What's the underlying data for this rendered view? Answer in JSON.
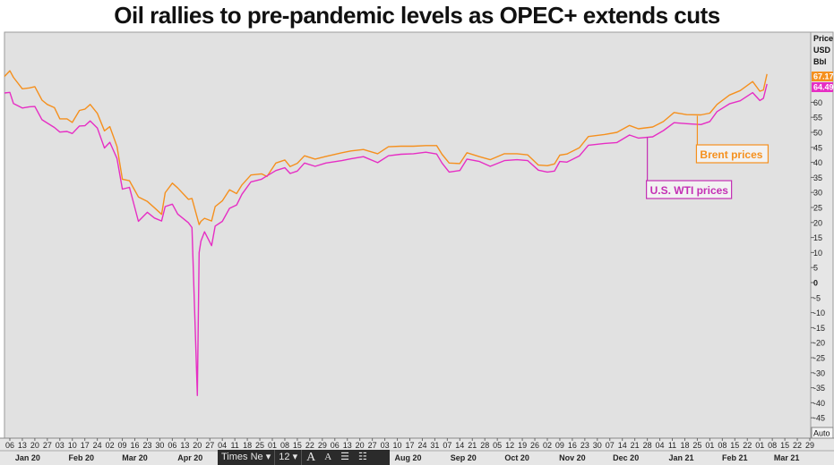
{
  "title": "Oil rallies to pre-pandemic levels as OPEC+ extends cuts",
  "chart_data": {
    "type": "line",
    "title": "Oil rallies to pre-pandemic levels as OPEC+ extends cuts",
    "y_axis_label": [
      "Price",
      "USD",
      "Bbl"
    ],
    "ylim": [
      -48,
      85
    ],
    "y_ticks": [
      60,
      55,
      50,
      45,
      40,
      35,
      30,
      25,
      20,
      15,
      10,
      5,
      0,
      -5,
      -10,
      -15,
      -20,
      -25,
      -30,
      -35,
      -40,
      -45
    ],
    "x_range": [
      "2020-01-03",
      "2021-03-31"
    ],
    "x_tick_labels": [
      {
        "d": "2020-01-06",
        "t": "06"
      },
      {
        "d": "2020-01-13",
        "t": "13"
      },
      {
        "d": "2020-01-20",
        "t": "20"
      },
      {
        "d": "2020-01-27",
        "t": "27"
      },
      {
        "d": "2020-02-03",
        "t": "03"
      },
      {
        "d": "2020-02-10",
        "t": "10"
      },
      {
        "d": "2020-02-17",
        "t": "17"
      },
      {
        "d": "2020-02-24",
        "t": "24"
      },
      {
        "d": "2020-03-02",
        "t": "02"
      },
      {
        "d": "2020-03-09",
        "t": "09"
      },
      {
        "d": "2020-03-16",
        "t": "16"
      },
      {
        "d": "2020-03-23",
        "t": "23"
      },
      {
        "d": "2020-03-30",
        "t": "30"
      },
      {
        "d": "2020-04-06",
        "t": "06"
      },
      {
        "d": "2020-04-13",
        "t": "13"
      },
      {
        "d": "2020-04-20",
        "t": "20"
      },
      {
        "d": "2020-04-27",
        "t": "27"
      },
      {
        "d": "2020-05-04",
        "t": "04"
      },
      {
        "d": "2020-05-11",
        "t": "11"
      },
      {
        "d": "2020-05-18",
        "t": "18"
      },
      {
        "d": "2020-05-25",
        "t": "25"
      },
      {
        "d": "2020-06-01",
        "t": "01"
      },
      {
        "d": "2020-06-08",
        "t": "08"
      },
      {
        "d": "2020-06-15",
        "t": "15"
      },
      {
        "d": "2020-06-22",
        "t": "22"
      },
      {
        "d": "2020-06-29",
        "t": "29"
      },
      {
        "d": "2020-07-06",
        "t": "06"
      },
      {
        "d": "2020-07-13",
        "t": "13"
      },
      {
        "d": "2020-07-20",
        "t": "20"
      },
      {
        "d": "2020-07-27",
        "t": "27"
      },
      {
        "d": "2020-08-03",
        "t": "03"
      },
      {
        "d": "2020-08-10",
        "t": "10"
      },
      {
        "d": "2020-08-17",
        "t": "17"
      },
      {
        "d": "2020-08-24",
        "t": "24"
      },
      {
        "d": "2020-08-31",
        "t": "31"
      },
      {
        "d": "2020-09-07",
        "t": "07"
      },
      {
        "d": "2020-09-14",
        "t": "14"
      },
      {
        "d": "2020-09-21",
        "t": "21"
      },
      {
        "d": "2020-09-28",
        "t": "28"
      },
      {
        "d": "2020-10-05",
        "t": "05"
      },
      {
        "d": "2020-10-12",
        "t": "12"
      },
      {
        "d": "2020-10-19",
        "t": "19"
      },
      {
        "d": "2020-10-26",
        "t": "26"
      },
      {
        "d": "2020-11-02",
        "t": "02"
      },
      {
        "d": "2020-11-09",
        "t": "09"
      },
      {
        "d": "2020-11-16",
        "t": "16"
      },
      {
        "d": "2020-11-23",
        "t": "23"
      },
      {
        "d": "2020-11-30",
        "t": "30"
      },
      {
        "d": "2020-12-07",
        "t": "07"
      },
      {
        "d": "2020-12-14",
        "t": "14"
      },
      {
        "d": "2020-12-21",
        "t": "21"
      },
      {
        "d": "2020-12-28",
        "t": "28"
      },
      {
        "d": "2021-01-04",
        "t": "04"
      },
      {
        "d": "2021-01-11",
        "t": "11"
      },
      {
        "d": "2021-01-18",
        "t": "18"
      },
      {
        "d": "2021-01-25",
        "t": "25"
      },
      {
        "d": "2021-02-01",
        "t": "01"
      },
      {
        "d": "2021-02-08",
        "t": "08"
      },
      {
        "d": "2021-02-15",
        "t": "15"
      },
      {
        "d": "2021-02-22",
        "t": "22"
      },
      {
        "d": "2021-03-01",
        "t": "01"
      },
      {
        "d": "2021-03-08",
        "t": "08"
      },
      {
        "d": "2021-03-15",
        "t": "15"
      },
      {
        "d": "2021-03-22",
        "t": "22"
      },
      {
        "d": "2021-03-29",
        "t": "29"
      }
    ],
    "month_labels": [
      {
        "d": "2020-01-16",
        "t": "Jan 20"
      },
      {
        "d": "2020-02-15",
        "t": "Feb 20"
      },
      {
        "d": "2020-03-16",
        "t": "Mar 20"
      },
      {
        "d": "2020-04-16",
        "t": "Apr 20"
      },
      {
        "d": "2020-08-16",
        "t": "Aug 20"
      },
      {
        "d": "2020-09-16",
        "t": "Sep 20"
      },
      {
        "d": "2020-10-16",
        "t": "Oct 20"
      },
      {
        "d": "2020-11-16",
        "t": "Nov 20"
      },
      {
        "d": "2020-12-16",
        "t": "Dec 20"
      },
      {
        "d": "2021-01-16",
        "t": "Jan 21"
      },
      {
        "d": "2021-02-15",
        "t": "Feb 21"
      },
      {
        "d": "2021-03-16",
        "t": "Mar 21"
      }
    ],
    "series": [
      {
        "name": "Brent prices",
        "color": "#f5901e",
        "last_value": "67.17",
        "points": [
          [
            "2020-01-03",
            68.6
          ],
          [
            "2020-01-06",
            70.5
          ],
          [
            "2020-01-08",
            68.3
          ],
          [
            "2020-01-13",
            64.5
          ],
          [
            "2020-01-17",
            64.8
          ],
          [
            "2020-01-20",
            65.2
          ],
          [
            "2020-01-24",
            60.7
          ],
          [
            "2020-01-27",
            59.3
          ],
          [
            "2020-01-31",
            58.2
          ],
          [
            "2020-02-03",
            54.5
          ],
          [
            "2020-02-07",
            54.5
          ],
          [
            "2020-02-10",
            53.3
          ],
          [
            "2020-02-14",
            57.3
          ],
          [
            "2020-02-17",
            57.7
          ],
          [
            "2020-02-20",
            59.3
          ],
          [
            "2020-02-24",
            56.3
          ],
          [
            "2020-02-28",
            50.5
          ],
          [
            "2020-03-02",
            51.9
          ],
          [
            "2020-03-06",
            45.3
          ],
          [
            "2020-03-09",
            34.4
          ],
          [
            "2020-03-13",
            33.9
          ],
          [
            "2020-03-18",
            28.5
          ],
          [
            "2020-03-23",
            27.0
          ],
          [
            "2020-03-27",
            24.9
          ],
          [
            "2020-03-31",
            22.7
          ],
          [
            "2020-04-02",
            29.9
          ],
          [
            "2020-04-06",
            33.1
          ],
          [
            "2020-04-09",
            31.5
          ],
          [
            "2020-04-15",
            27.7
          ],
          [
            "2020-04-17",
            28.0
          ],
          [
            "2020-04-21",
            19.3
          ],
          [
            "2020-04-22",
            20.4
          ],
          [
            "2020-04-24",
            21.4
          ],
          [
            "2020-04-28",
            20.5
          ],
          [
            "2020-04-30",
            25.3
          ],
          [
            "2020-05-04",
            27.2
          ],
          [
            "2020-05-08",
            30.9
          ],
          [
            "2020-05-12",
            29.6
          ],
          [
            "2020-05-15",
            32.5
          ],
          [
            "2020-05-20",
            35.8
          ],
          [
            "2020-05-26",
            36.2
          ],
          [
            "2020-05-29",
            35.3
          ],
          [
            "2020-06-03",
            39.8
          ],
          [
            "2020-06-08",
            40.8
          ],
          [
            "2020-06-11",
            38.6
          ],
          [
            "2020-06-15",
            39.7
          ],
          [
            "2020-06-19",
            42.2
          ],
          [
            "2020-06-25",
            41.1
          ],
          [
            "2020-07-01",
            42.0
          ],
          [
            "2020-07-10",
            43.2
          ],
          [
            "2020-07-15",
            43.8
          ],
          [
            "2020-07-22",
            44.3
          ],
          [
            "2020-07-30",
            42.9
          ],
          [
            "2020-08-05",
            45.2
          ],
          [
            "2020-08-12",
            45.4
          ],
          [
            "2020-08-19",
            45.4
          ],
          [
            "2020-08-26",
            45.6
          ],
          [
            "2020-09-01",
            45.6
          ],
          [
            "2020-09-04",
            42.7
          ],
          [
            "2020-09-08",
            39.8
          ],
          [
            "2020-09-14",
            39.6
          ],
          [
            "2020-09-18",
            43.2
          ],
          [
            "2020-09-25",
            41.9
          ],
          [
            "2020-10-01",
            40.9
          ],
          [
            "2020-10-09",
            42.9
          ],
          [
            "2020-10-16",
            42.9
          ],
          [
            "2020-10-22",
            42.5
          ],
          [
            "2020-10-28",
            39.1
          ],
          [
            "2020-11-02",
            38.9
          ],
          [
            "2020-11-06",
            39.5
          ],
          [
            "2020-11-09",
            42.4
          ],
          [
            "2020-11-13",
            42.8
          ],
          [
            "2020-11-20",
            44.9
          ],
          [
            "2020-11-25",
            48.6
          ],
          [
            "2020-12-04",
            49.3
          ],
          [
            "2020-12-11",
            50.0
          ],
          [
            "2020-12-18",
            52.3
          ],
          [
            "2020-12-23",
            51.2
          ],
          [
            "2020-12-31",
            51.8
          ],
          [
            "2021-01-06",
            53.6
          ],
          [
            "2021-01-12",
            56.6
          ],
          [
            "2021-01-19",
            55.9
          ],
          [
            "2021-01-27",
            55.8
          ],
          [
            "2021-02-01",
            56.4
          ],
          [
            "2021-02-05",
            59.3
          ],
          [
            "2021-02-12",
            62.4
          ],
          [
            "2021-02-18",
            63.9
          ],
          [
            "2021-02-25",
            66.9
          ],
          [
            "2021-03-01",
            63.7
          ],
          [
            "2021-03-03",
            64.1
          ],
          [
            "2021-03-05",
            69.4
          ]
        ]
      },
      {
        "name": "U.S. WTI prices",
        "color": "#e62ec4",
        "last_value": "64.49",
        "points": [
          [
            "2020-01-03",
            63.1
          ],
          [
            "2020-01-06",
            63.3
          ],
          [
            "2020-01-08",
            59.6
          ],
          [
            "2020-01-13",
            58.1
          ],
          [
            "2020-01-17",
            58.5
          ],
          [
            "2020-01-20",
            58.6
          ],
          [
            "2020-01-24",
            54.2
          ],
          [
            "2020-01-27",
            53.1
          ],
          [
            "2020-01-31",
            51.6
          ],
          [
            "2020-02-03",
            50.1
          ],
          [
            "2020-02-07",
            50.3
          ],
          [
            "2020-02-10",
            49.6
          ],
          [
            "2020-02-14",
            52.1
          ],
          [
            "2020-02-17",
            52.2
          ],
          [
            "2020-02-20",
            53.8
          ],
          [
            "2020-02-24",
            51.4
          ],
          [
            "2020-02-28",
            44.8
          ],
          [
            "2020-03-02",
            46.7
          ],
          [
            "2020-03-06",
            41.3
          ],
          [
            "2020-03-09",
            31.1
          ],
          [
            "2020-03-13",
            31.7
          ],
          [
            "2020-03-18",
            20.4
          ],
          [
            "2020-03-23",
            23.4
          ],
          [
            "2020-03-27",
            21.5
          ],
          [
            "2020-03-31",
            20.5
          ],
          [
            "2020-04-02",
            25.3
          ],
          [
            "2020-04-06",
            26.1
          ],
          [
            "2020-04-09",
            22.8
          ],
          [
            "2020-04-15",
            19.9
          ],
          [
            "2020-04-17",
            18.3
          ],
          [
            "2020-04-20",
            -37.6
          ],
          [
            "2020-04-21",
            10.0
          ],
          [
            "2020-04-22",
            13.8
          ],
          [
            "2020-04-24",
            16.9
          ],
          [
            "2020-04-28",
            12.3
          ],
          [
            "2020-04-30",
            18.8
          ],
          [
            "2020-05-04",
            20.4
          ],
          [
            "2020-05-08",
            24.7
          ],
          [
            "2020-05-12",
            25.8
          ],
          [
            "2020-05-15",
            29.4
          ],
          [
            "2020-05-20",
            33.5
          ],
          [
            "2020-05-26",
            34.4
          ],
          [
            "2020-05-29",
            35.5
          ],
          [
            "2020-06-03",
            37.3
          ],
          [
            "2020-06-08",
            38.2
          ],
          [
            "2020-06-11",
            36.3
          ],
          [
            "2020-06-15",
            37.1
          ],
          [
            "2020-06-19",
            39.8
          ],
          [
            "2020-06-25",
            38.7
          ],
          [
            "2020-07-01",
            39.8
          ],
          [
            "2020-07-10",
            40.6
          ],
          [
            "2020-07-15",
            41.2
          ],
          [
            "2020-07-22",
            41.9
          ],
          [
            "2020-07-30",
            39.9
          ],
          [
            "2020-08-05",
            42.2
          ],
          [
            "2020-08-12",
            42.7
          ],
          [
            "2020-08-19",
            42.9
          ],
          [
            "2020-08-26",
            43.4
          ],
          [
            "2020-09-01",
            42.8
          ],
          [
            "2020-09-04",
            39.8
          ],
          [
            "2020-09-08",
            36.8
          ],
          [
            "2020-09-14",
            37.3
          ],
          [
            "2020-09-18",
            41.1
          ],
          [
            "2020-09-25",
            40.3
          ],
          [
            "2020-10-01",
            38.7
          ],
          [
            "2020-10-09",
            40.6
          ],
          [
            "2020-10-16",
            40.9
          ],
          [
            "2020-10-22",
            40.6
          ],
          [
            "2020-10-28",
            37.4
          ],
          [
            "2020-11-02",
            36.8
          ],
          [
            "2020-11-06",
            37.1
          ],
          [
            "2020-11-09",
            40.3
          ],
          [
            "2020-11-13",
            40.1
          ],
          [
            "2020-11-20",
            42.2
          ],
          [
            "2020-11-25",
            45.7
          ],
          [
            "2020-12-04",
            46.3
          ],
          [
            "2020-12-11",
            46.6
          ],
          [
            "2020-12-18",
            49.1
          ],
          [
            "2020-12-23",
            48.1
          ],
          [
            "2020-12-31",
            48.5
          ],
          [
            "2021-01-06",
            50.6
          ],
          [
            "2021-01-12",
            53.2
          ],
          [
            "2021-01-19",
            52.9
          ],
          [
            "2021-01-27",
            52.6
          ],
          [
            "2021-02-01",
            53.6
          ],
          [
            "2021-02-05",
            56.9
          ],
          [
            "2021-02-12",
            59.5
          ],
          [
            "2021-02-18",
            60.5
          ],
          [
            "2021-02-25",
            63.2
          ],
          [
            "2021-03-01",
            60.6
          ],
          [
            "2021-03-03",
            61.3
          ],
          [
            "2021-03-05",
            66.1
          ]
        ]
      }
    ],
    "annotations": [
      {
        "text": "Brent prices",
        "color": "#f5901e",
        "anchor_date": "2021-01-25",
        "anchor_value": 55.5
      },
      {
        "text": "U.S. WTI prices",
        "color": "#c42fb4",
        "anchor_date": "2020-12-28",
        "anchor_value": 48.5
      }
    ],
    "axis_button": "Auto",
    "grid": false
  },
  "toolbar": {
    "font_name": "Times Ne",
    "font_size": "12",
    "grow_icon": "A",
    "shrink_icon": "A"
  }
}
